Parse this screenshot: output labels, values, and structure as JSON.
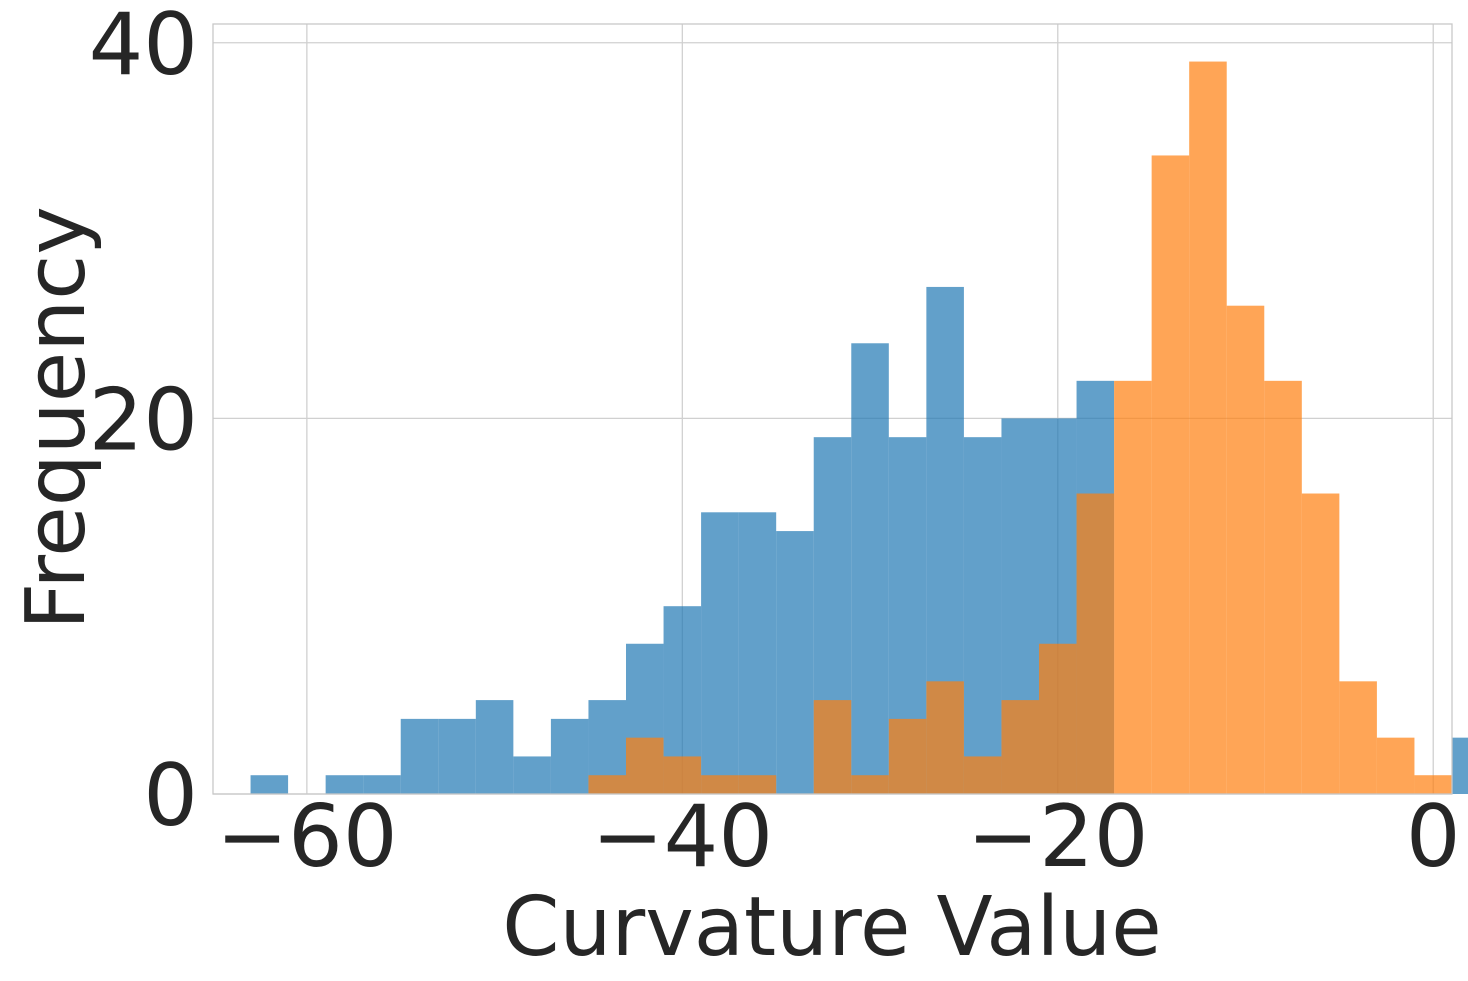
{
  "chart_data": {
    "type": "histogram",
    "xlabel": "Curvature Value",
    "ylabel": "Frequency",
    "xlim": [
      -65,
      1
    ],
    "ylim": [
      0,
      41
    ],
    "xticks": [
      -60,
      -40,
      -20,
      0
    ],
    "xtick_labels": [
      "−60",
      "−40",
      "−20",
      "0"
    ],
    "yticks": [
      0,
      20,
      40
    ],
    "ytick_labels": [
      "0",
      "20",
      "40"
    ],
    "grid": true,
    "legend": "none",
    "bin_start": -63,
    "bin_width": 2,
    "series": [
      {
        "color": "#1f77b4",
        "opacity": 0.7,
        "counts": [
          1,
          0,
          1,
          1,
          4,
          4,
          5,
          2,
          4,
          5,
          8,
          10,
          15,
          15,
          14,
          19,
          24,
          19,
          27,
          19,
          20,
          20,
          22,
          0,
          0,
          0,
          0,
          0,
          0,
          0,
          0,
          0,
          3,
          1
        ]
      },
      {
        "color": "#ff7f0e",
        "opacity": 0.7,
        "counts": [
          0,
          0,
          0,
          0,
          0,
          0,
          0,
          0,
          0,
          1,
          3,
          2,
          1,
          1,
          0,
          5,
          1,
          4,
          6,
          2,
          5,
          8,
          16,
          22,
          34,
          39,
          26,
          22,
          16,
          6,
          3,
          1,
          0,
          0
        ]
      }
    ]
  }
}
